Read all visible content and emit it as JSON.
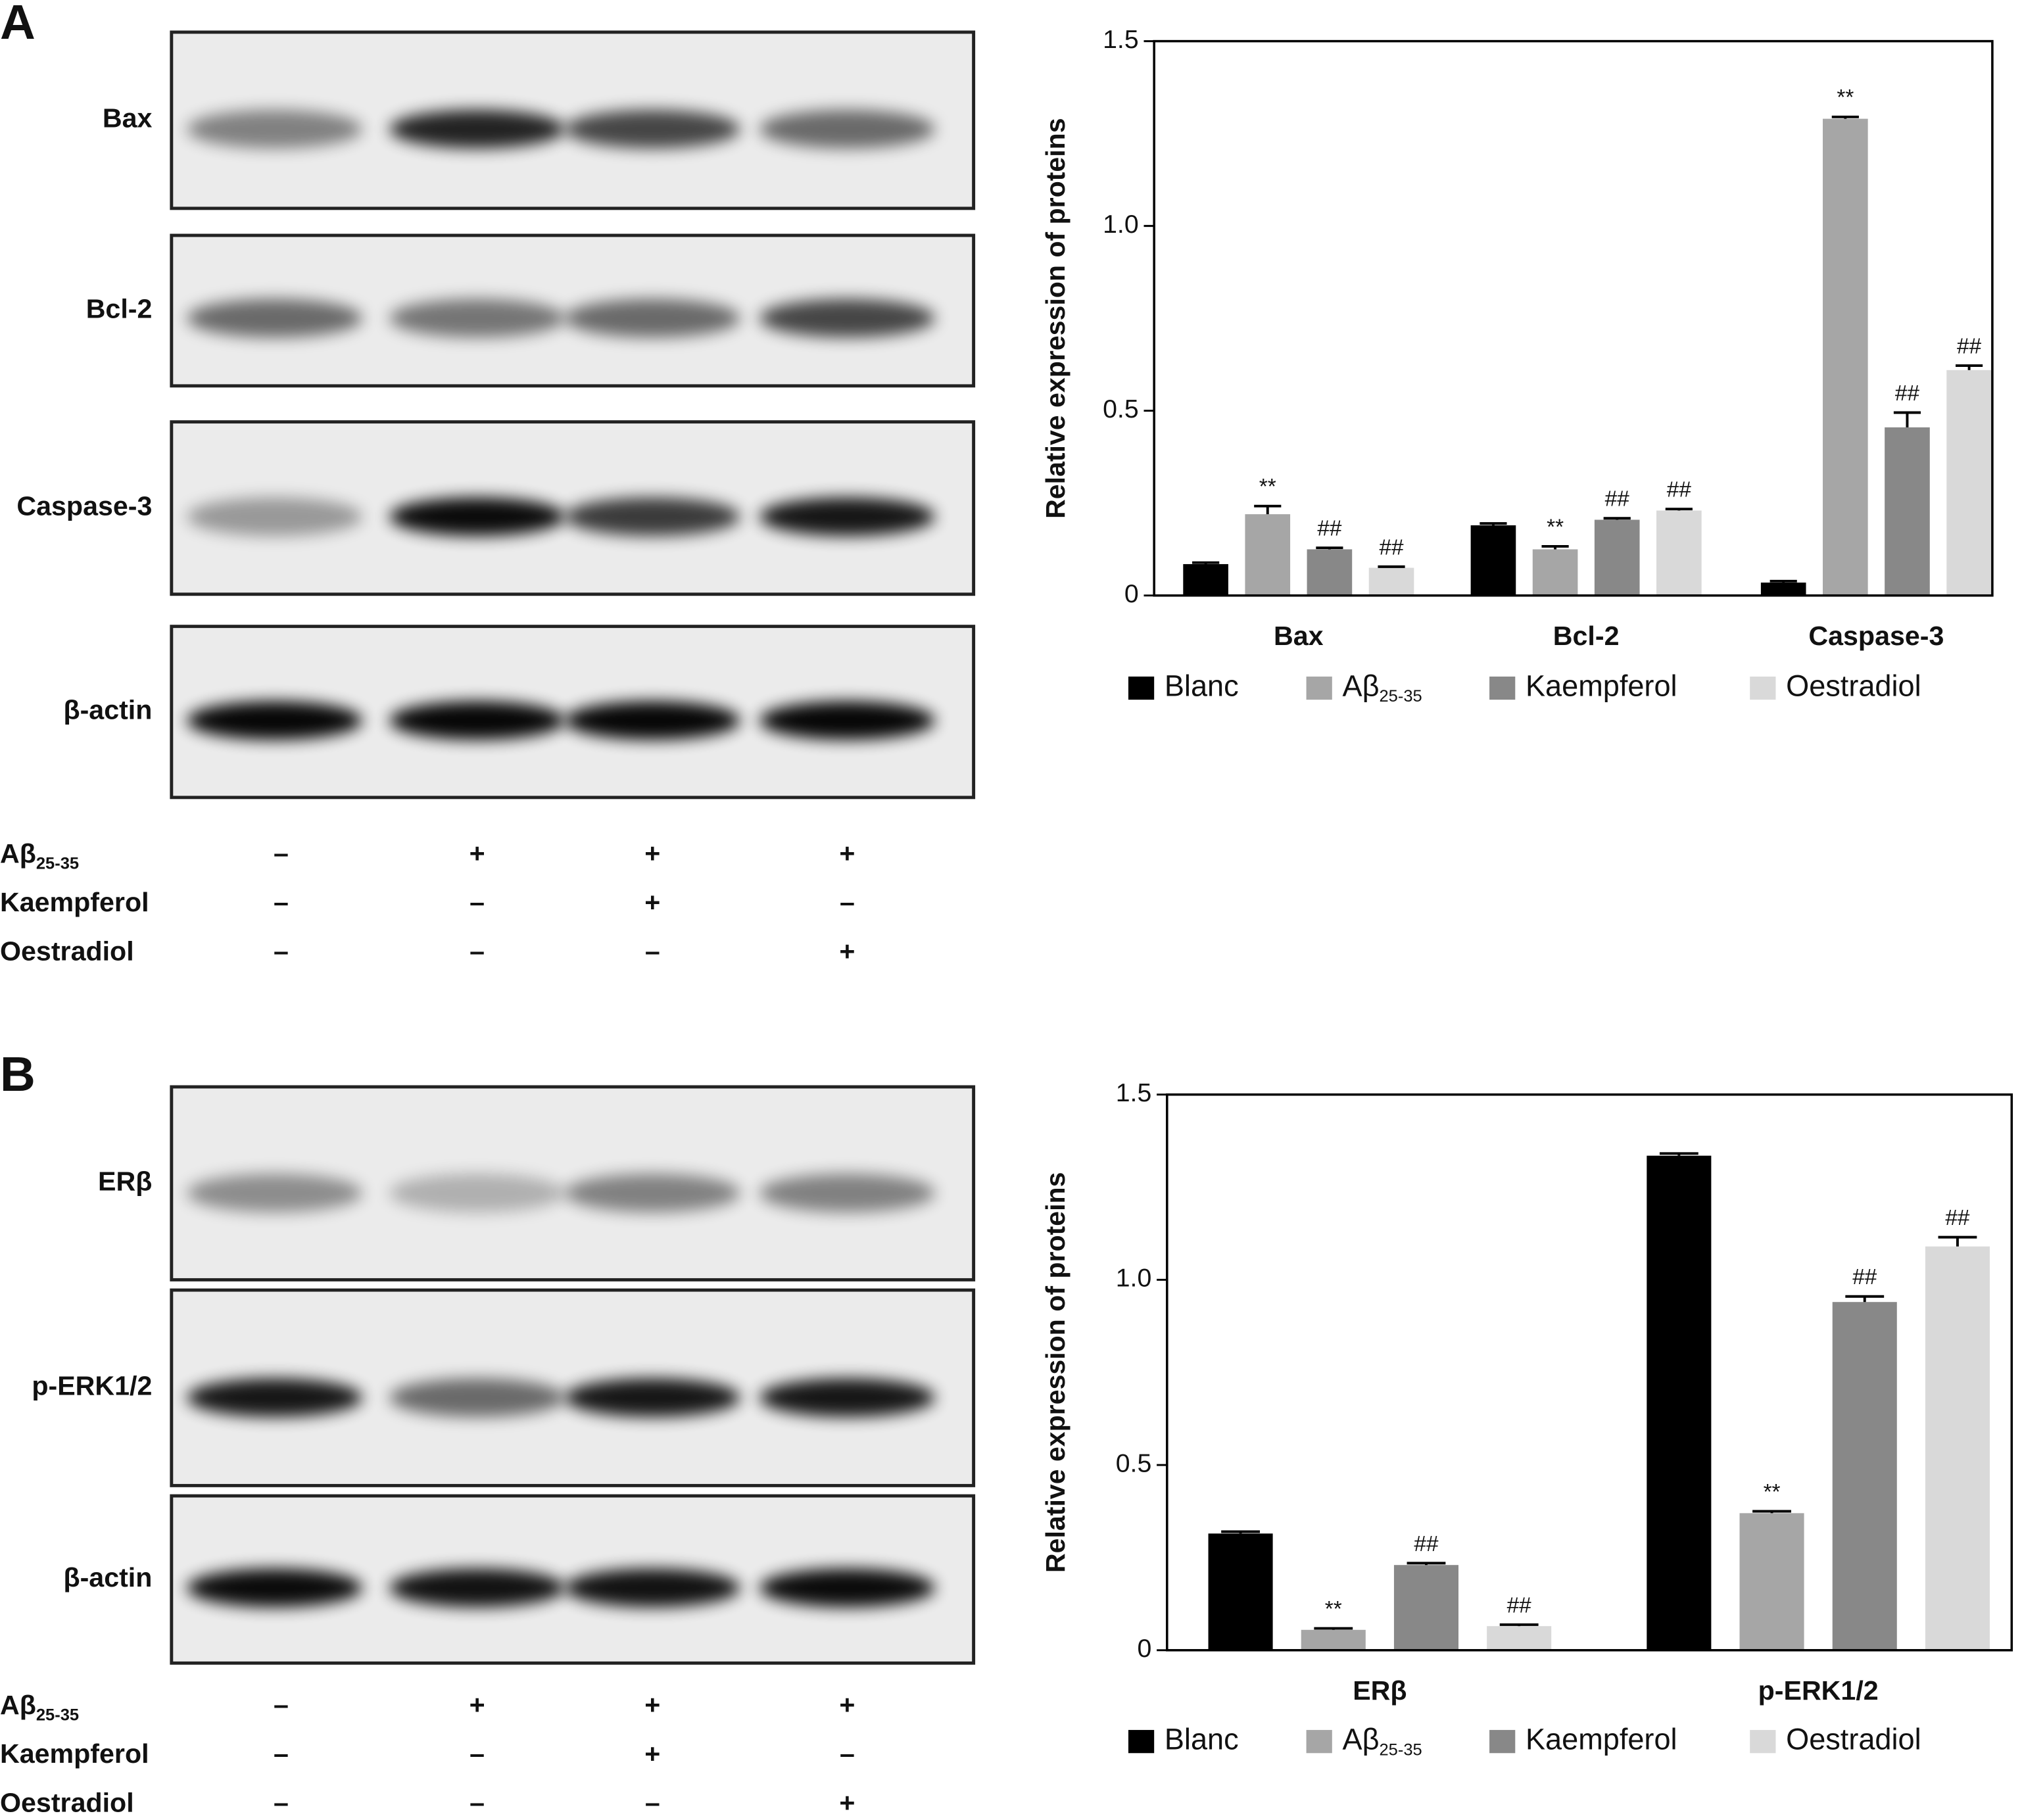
{
  "blots": [
    {
      "panel": "A",
      "rows": [
        "Bax",
        "Bcl-2",
        "Caspase-3",
        "β-actin"
      ],
      "treatments": [
        {
          "label": "Aβ",
          "label_sub": "25-35",
          "cells": [
            "–",
            "+",
            "+",
            "+"
          ]
        },
        {
          "label": "Kaempferol",
          "cells": [
            "–",
            "–",
            "+",
            "–"
          ]
        },
        {
          "label": "Oestradiol",
          "cells": [
            "–",
            "–",
            "–",
            "+"
          ]
        }
      ]
    },
    {
      "panel": "B",
      "rows": [
        "ERβ",
        "p-ERK1/2",
        "β-actin"
      ],
      "treatments": [
        {
          "label": "Aβ",
          "label_sub": "25-35",
          "cells": [
            "–",
            "+",
            "+",
            "+"
          ]
        },
        {
          "label": "Kaempferol",
          "cells": [
            "–",
            "–",
            "+",
            "–"
          ]
        },
        {
          "label": "Oestradiol",
          "cells": [
            "–",
            "–",
            "–",
            "+"
          ]
        }
      ]
    }
  ],
  "chart_data": [
    {
      "type": "bar",
      "ylabel": "Relative expression of proteins",
      "categories": [
        "Bax",
        "Bcl-2",
        "Caspase-3"
      ],
      "ylim": [
        0,
        1.5
      ],
      "yticks": [
        0,
        0.5,
        {
          "value": 1,
          "label": "1.0"
        },
        1.5
      ],
      "series": [
        {
          "name": "Blanc",
          "color": "#000000",
          "values": [
            0.085,
            0.19,
            0.035
          ],
          "errors": [
            0.004,
            0.005,
            0.004
          ],
          "annotations": [
            null,
            null,
            null
          ]
        },
        {
          "name": "Aβ",
          "name_sub": "25-35",
          "color": "#a6a6a6",
          "values": [
            0.22,
            0.125,
            1.29
          ],
          "errors": [
            0.022,
            0.008,
            0.005
          ],
          "annotations": [
            "**",
            "**",
            "**"
          ]
        },
        {
          "name": "Kaempferol",
          "color": "#888888",
          "values": [
            0.125,
            0.205,
            0.455
          ],
          "errors": [
            0.004,
            0.004,
            0.04
          ],
          "annotations": [
            "##",
            "##",
            "##"
          ]
        },
        {
          "name": "Oestradiol",
          "color": "#d9d9d9",
          "values": [
            0.075,
            0.23,
            0.61
          ],
          "errors": [
            0.003,
            0.004,
            0.012
          ],
          "annotations": [
            "##",
            "##",
            "##"
          ]
        }
      ]
    },
    {
      "type": "bar",
      "ylabel": "Relative expression of proteins",
      "categories": [
        "ERβ",
        "p-ERK1/2"
      ],
      "ylim": [
        0,
        1.5
      ],
      "yticks": [
        0,
        0.5,
        {
          "value": 1,
          "label": "1.0"
        },
        1.5
      ],
      "series": [
        {
          "name": "Blanc",
          "color": "#000000",
          "values": [
            0.315,
            1.335
          ],
          "errors": [
            0.005,
            0.006
          ],
          "annotations": [
            null,
            null
          ]
        },
        {
          "name": "Aβ",
          "name_sub": "25-35",
          "color": "#a6a6a6",
          "values": [
            0.055,
            0.37
          ],
          "errors": [
            0.004,
            0.005
          ],
          "annotations": [
            "**",
            "**"
          ]
        },
        {
          "name": "Kaempferol",
          "color": "#888888",
          "values": [
            0.23,
            0.94
          ],
          "errors": [
            0.005,
            0.015
          ],
          "annotations": [
            "##",
            "##"
          ]
        },
        {
          "name": "Oestradiol",
          "color": "#d9d9d9",
          "values": [
            0.065,
            1.09
          ],
          "errors": [
            0.004,
            0.025
          ],
          "annotations": [
            "##",
            "##"
          ]
        }
      ]
    }
  ]
}
